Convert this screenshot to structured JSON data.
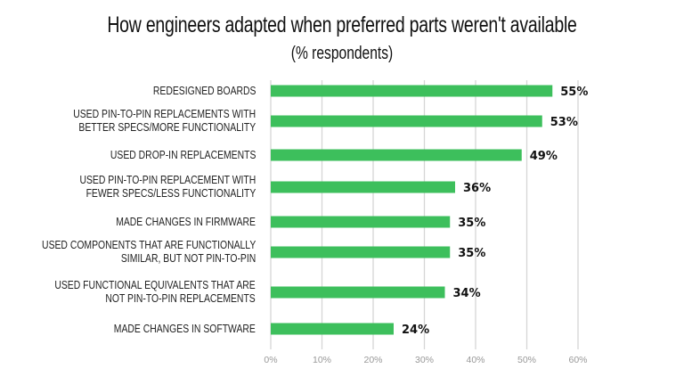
{
  "chart_data": {
    "type": "bar",
    "orientation": "horizontal",
    "title": "How engineers adapted when preferred parts weren't available",
    "subtitle": "(% respondents)",
    "categories": [
      [
        "REDESIGNED BOARDS"
      ],
      [
        "USED PIN-TO-PIN REPLACEMENTS WITH",
        "BETTER SPECS/MORE FUNCTIONALITY"
      ],
      [
        "USED DROP-IN REPLACEMENTS"
      ],
      [
        "USED PIN-TO-PIN REPLACEMENT WITH",
        "FEWER SPECS/LESS FUNCTIONALITY"
      ],
      [
        "MADE CHANGES IN FIRMWARE"
      ],
      [
        "USED COMPONENTS THAT ARE FUNCTIONALLY",
        "SIMILAR, BUT NOT PIN-TO-PIN"
      ],
      [
        "USED FUNCTIONAL EQUIVALENTS THAT ARE",
        "NOT PIN-TO-PIN REPLACEMENTS"
      ],
      [
        "MADE CHANGES IN SOFTWARE"
      ]
    ],
    "values": [
      55,
      53,
      49,
      36,
      35,
      35,
      34,
      24
    ],
    "data_labels": [
      "55%",
      "53%",
      "49%",
      "36%",
      "35%",
      "35%",
      "34%",
      "24%"
    ],
    "xlim": [
      0,
      60
    ],
    "x_ticks": [
      "0%",
      "10%",
      "20%",
      "30%",
      "40%",
      "50%",
      "60%"
    ],
    "grid": "vertical",
    "bar_color": "#3dbf5c",
    "grid_color": "#d6d6d6"
  }
}
